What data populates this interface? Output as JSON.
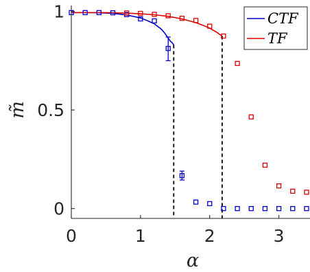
{
  "chart_data": {
    "type": "scatter",
    "title": "",
    "xlabel": "α",
    "ylabel": "m̃",
    "xlim": [
      0,
      3.45
    ],
    "ylim": [
      -0.05,
      1.03
    ],
    "xticks": [
      0,
      1,
      2,
      3
    ],
    "yticks": [
      0,
      0.5,
      1
    ],
    "xtick_labels": [
      "0",
      "1",
      "2",
      "3"
    ],
    "ytick_labels": [
      "0",
      "0.5",
      "1"
    ],
    "grid": false,
    "legend_position": "top-right",
    "series": [
      {
        "name": "CTF",
        "color": "#0000cc",
        "points": [
          {
            "x": 0.0,
            "y": 0.994
          },
          {
            "x": 0.2,
            "y": 0.994
          },
          {
            "x": 0.4,
            "y": 0.994
          },
          {
            "x": 0.6,
            "y": 0.993
          },
          {
            "x": 0.8,
            "y": 0.984
          },
          {
            "x": 1.0,
            "y": 0.962
          },
          {
            "x": 1.2,
            "y": 0.952
          },
          {
            "x": 1.4,
            "y": 0.812
          },
          {
            "x": 1.6,
            "y": 0.167
          },
          {
            "x": 1.8,
            "y": 0.033
          },
          {
            "x": 2.0,
            "y": 0.025
          },
          {
            "x": 2.2,
            "y": 0.0
          },
          {
            "x": 2.4,
            "y": 0.0
          },
          {
            "x": 2.6,
            "y": 0.0
          },
          {
            "x": 2.8,
            "y": 0.0
          },
          {
            "x": 3.0,
            "y": 0.0
          },
          {
            "x": 3.2,
            "y": 0.0
          },
          {
            "x": 3.4,
            "y": 0.0
          }
        ],
        "error_bars": [
          {
            "x": 1.4,
            "low": 0.75,
            "high": 0.87
          },
          {
            "x": 1.6,
            "low": 0.145,
            "high": 0.19
          }
        ],
        "theory_curve": {
          "x": [
            0.0,
            0.2,
            0.4,
            0.6,
            0.8,
            1.0,
            1.1,
            1.2,
            1.3,
            1.35,
            1.4,
            1.43,
            1.46,
            1.48
          ],
          "y": [
            0.994,
            0.994,
            0.993,
            0.99,
            0.982,
            0.967,
            0.953,
            0.937,
            0.91,
            0.89,
            0.865,
            0.85,
            0.84,
            0.83
          ]
        },
        "transition_x": 1.48,
        "transition_y": 0.83
      },
      {
        "name": "TF",
        "color": "#dd0000",
        "points": [
          {
            "x": 0.8,
            "y": 0.992
          },
          {
            "x": 1.0,
            "y": 0.99
          },
          {
            "x": 1.2,
            "y": 0.985
          },
          {
            "x": 1.4,
            "y": 0.978
          },
          {
            "x": 1.6,
            "y": 0.965
          },
          {
            "x": 1.8,
            "y": 0.954
          },
          {
            "x": 2.0,
            "y": 0.925
          },
          {
            "x": 2.2,
            "y": 0.875
          },
          {
            "x": 2.4,
            "y": 0.736
          },
          {
            "x": 2.6,
            "y": 0.465
          },
          {
            "x": 2.8,
            "y": 0.22
          },
          {
            "x": 3.0,
            "y": 0.115
          },
          {
            "x": 3.2,
            "y": 0.088
          },
          {
            "x": 3.4,
            "y": 0.083
          }
        ],
        "theory_curve": {
          "x": [
            0.0,
            0.2,
            0.4,
            0.6,
            0.8,
            1.0,
            1.2,
            1.4,
            1.6,
            1.8,
            1.9,
            2.0,
            2.1,
            2.15,
            2.18
          ],
          "y": [
            0.994,
            0.994,
            0.994,
            0.993,
            0.991,
            0.988,
            0.983,
            0.975,
            0.962,
            0.943,
            0.93,
            0.915,
            0.895,
            0.882,
            0.875
          ]
        },
        "transition_x": 2.18,
        "transition_y": 0.875
      }
    ]
  }
}
